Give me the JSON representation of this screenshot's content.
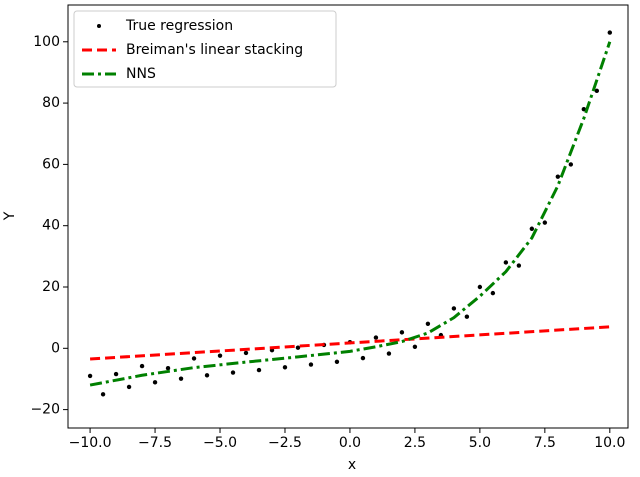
{
  "chart_data": {
    "type": "scatter-line",
    "xlabel": "x",
    "ylabel": "Y",
    "xlim": [
      -10.85,
      10.7
    ],
    "ylim": [
      -26,
      112
    ],
    "xticks": [
      {
        "value": -10,
        "label": "−10.0"
      },
      {
        "value": -7.5,
        "label": "−7.5"
      },
      {
        "value": -5,
        "label": "−5.0"
      },
      {
        "value": -2.5,
        "label": "−2.5"
      },
      {
        "value": 0,
        "label": "0.0"
      },
      {
        "value": 2.5,
        "label": "2.5"
      },
      {
        "value": 5,
        "label": "5.0"
      },
      {
        "value": 7.5,
        "label": "7.5"
      },
      {
        "value": 10,
        "label": "10.0"
      }
    ],
    "yticks": [
      {
        "value": -20,
        "label": "−20"
      },
      0,
      20,
      40,
      60,
      80,
      100
    ],
    "legend": "upper left",
    "series": [
      {
        "name": "True regression",
        "kind": "scatter",
        "color": "#000000",
        "x": [
          -10,
          -9.5,
          -9,
          -8.5,
          -8,
          -7.5,
          -7,
          -6.5,
          -6,
          -5.5,
          -5,
          -4.5,
          -4,
          -3.5,
          -3,
          -2.5,
          -2,
          -1.5,
          -1,
          -0.5,
          0,
          0.5,
          1,
          1.5,
          2,
          2.5,
          3,
          3.5,
          4,
          4.5,
          5,
          5.5,
          6,
          6.5,
          7,
          7.5,
          8,
          8.5,
          9,
          9.5,
          10
        ],
        "values": [
          -9,
          -15,
          -8.4,
          -12.6,
          -5.8,
          -11.1,
          -6.5,
          -9.9,
          -3.3,
          -8.8,
          -2.4,
          -7.9,
          -1.5,
          -7.1,
          -0.6,
          -6.2,
          0.2,
          -5.3,
          1.1,
          -4.4,
          2,
          -3.2,
          3.5,
          -1.7,
          5.2,
          0.5,
          8,
          4.3,
          13,
          10.3,
          20,
          18,
          28,
          27,
          39,
          41,
          56,
          60,
          78,
          84,
          103
        ]
      },
      {
        "name": "Breiman's linear stacking",
        "kind": "line",
        "linestyle": "dashed",
        "color": "#ff0000",
        "x": [
          -10,
          10
        ],
        "values": [
          -3.5,
          7
        ]
      },
      {
        "name": "NNS",
        "kind": "line",
        "linestyle": "dashdot",
        "color": "#008000",
        "x": [
          -10,
          -8,
          -6,
          -4,
          -2,
          0,
          1,
          2,
          3,
          4,
          5,
          6,
          7,
          8,
          9,
          10
        ],
        "values": [
          -12,
          -8.8,
          -6.3,
          -4.5,
          -2.8,
          -1,
          0.5,
          2.2,
          5,
          10,
          17,
          25,
          36,
          53,
          75,
          100
        ]
      }
    ]
  }
}
